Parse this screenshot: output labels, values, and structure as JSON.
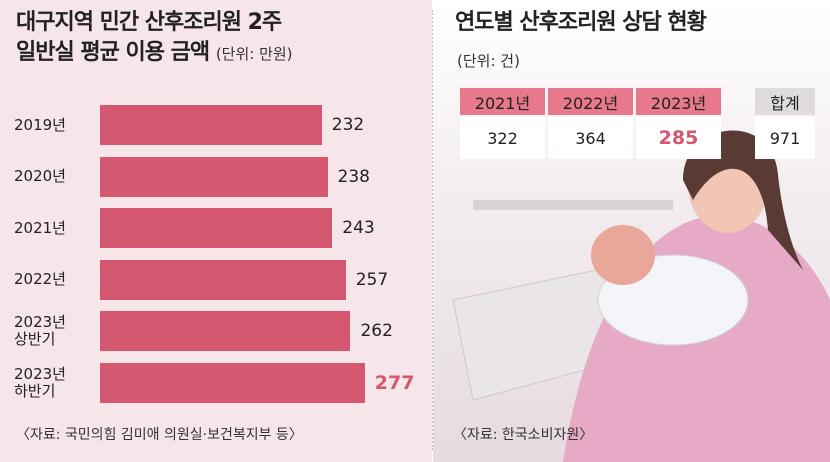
{
  "chart_data": {
    "type": "bar",
    "orientation": "horizontal",
    "title": "대구지역 민간 산후조리원 2주\n일반실 평균 이용 금액",
    "subtitle": "(단위: 만원)",
    "categories": [
      "2019년",
      "2020년",
      "2021년",
      "2022년",
      "2023년\n상반기",
      "2023년\n하반기"
    ],
    "values": [
      232,
      238,
      243,
      257,
      262,
      277
    ],
    "color": "#d4566f",
    "value_label_colors": [
      "#222222",
      "#222222",
      "#222222",
      "#222222",
      "#222222",
      "#d4566f"
    ],
    "source": "〈자료: 국민의힘 김미애 의원실·보건복지부 등〉"
  },
  "table": {
    "title": "연도별 산후조리원 상담 현황",
    "subtitle": "(단위: 건)",
    "header": [
      "2021년",
      "2022년",
      "2023년",
      "합계"
    ],
    "values": [
      322,
      364,
      285,
      971
    ],
    "highlight_color": "#d4566f",
    "highlight_index": 2,
    "source": "〈자료: 한국소비자원〉"
  }
}
